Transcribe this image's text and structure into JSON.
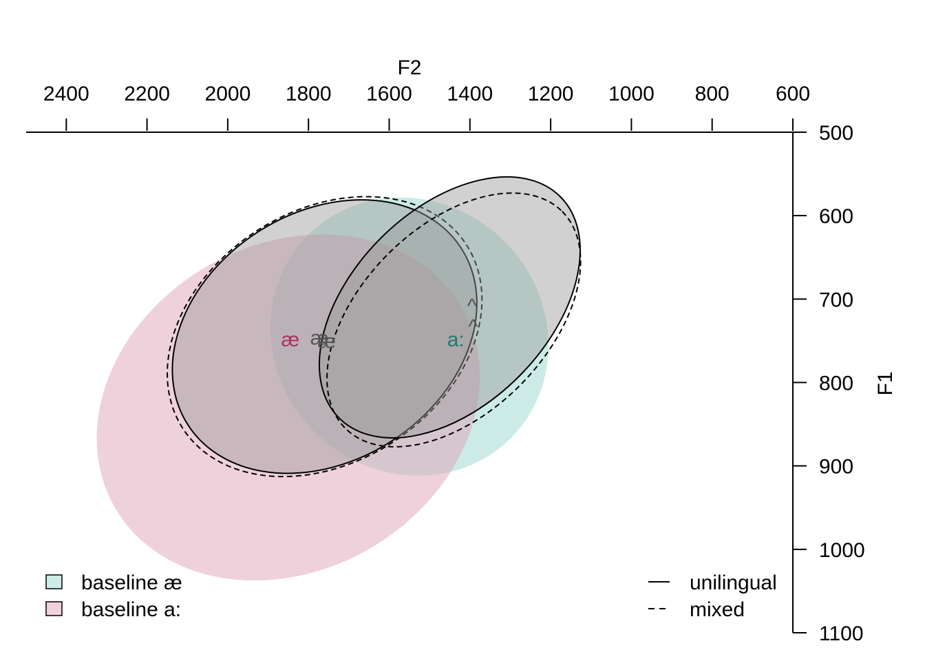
{
  "chart_data": {
    "type": "scatter",
    "title": "",
    "xlabel": "F2",
    "ylabel": "F1",
    "x_axis": {
      "reversed": true,
      "xlim": [
        2500,
        600
      ],
      "ticks": [
        2400,
        2200,
        2000,
        1800,
        1600,
        1400,
        1200,
        1000,
        800,
        600
      ],
      "position": "top"
    },
    "y_axis": {
      "reversed": true,
      "ylim": [
        500,
        1100
      ],
      "ticks": [
        500,
        600,
        700,
        800,
        900,
        1000,
        1100
      ],
      "position": "right"
    },
    "grid": false,
    "colors": {
      "teal_fill": "#8fd3c8",
      "pink_fill": "#dfa3b8",
      "gray_fill": "#9a9a9a",
      "teal_text": "#1f7a73",
      "pink_text": "#a8335e",
      "gray_text": "#555555"
    },
    "baseline_ellipses": [
      {
        "name": "baseline æ",
        "cx": 1550,
        "cy": 745,
        "rx": 215,
        "ry": 185,
        "angle": -45,
        "color": "#8fd3c8",
        "opacity": 0.45
      },
      {
        "name": "baseline a:",
        "cx": 1850,
        "cy": 830,
        "rx": 320,
        "ry": 210,
        "angle": -30,
        "color": "#dfa3b8",
        "opacity": 0.5
      }
    ],
    "condition_ellipses": [
      {
        "vowel": "æ",
        "condition": "unilingual",
        "dash": "solid",
        "cx": 1760,
        "cy": 745,
        "rx": 260,
        "ry": 160,
        "angle": -33
      },
      {
        "vowel": "æ",
        "condition": "mixed",
        "dash": "dashed",
        "cx": 1760,
        "cy": 745,
        "rx": 270,
        "ry": 162,
        "angle": -33
      },
      {
        "vowel": "a:",
        "condition": "unilingual",
        "dash": "solid",
        "cx": 1450,
        "cy": 710,
        "rx": 250,
        "ry": 126,
        "angle": -45
      },
      {
        "vowel": "a:",
        "condition": "mixed",
        "dash": "dashed",
        "cx": 1440,
        "cy": 725,
        "rx": 245,
        "ry": 120,
        "angle": -45
      }
    ],
    "vowel_labels": [
      {
        "text": "æ",
        "x": 1845,
        "y": 750,
        "color": "#a8335e"
      },
      {
        "text": "æ",
        "x": 1773,
        "y": 748,
        "color": "#555555"
      },
      {
        "text": "æ",
        "x": 1755,
        "y": 752,
        "color": "#555555"
      },
      {
        "text": "a:",
        "x": 1435,
        "y": 750,
        "color": "#1f7a73"
      },
      {
        "text": "^",
        "x": 1395,
        "y": 710,
        "color": "#555555"
      },
      {
        "text": "^",
        "x": 1392,
        "y": 735,
        "color": "#555555"
      }
    ],
    "legend_fill": {
      "placement": "bottom-left",
      "items": [
        {
          "label": "baseline æ",
          "color": "#cdece7"
        },
        {
          "label": "baseline a:",
          "color": "#f0d2dc"
        }
      ]
    },
    "legend_line": {
      "placement": "bottom-right",
      "items": [
        {
          "label": "unilingual",
          "dash": "solid"
        },
        {
          "label": "mixed",
          "dash": "dashed"
        }
      ]
    }
  }
}
